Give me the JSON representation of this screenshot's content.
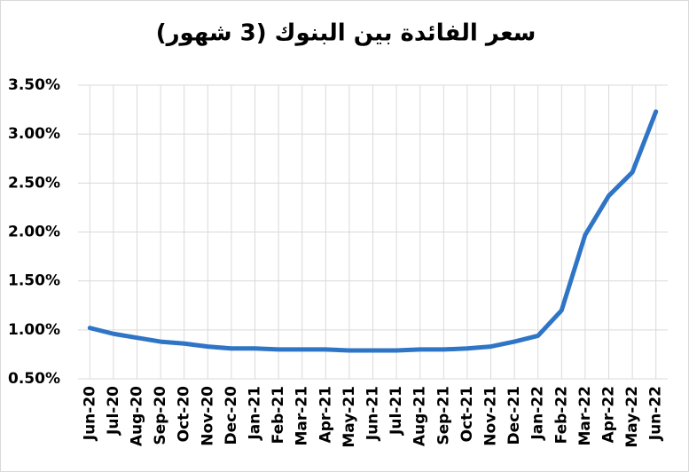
{
  "chart_data": {
    "type": "line",
    "title": "سعر الفائدة بين البنوك (3 شهور)",
    "categories": [
      "Jun-20",
      "Jul-20",
      "Aug-20",
      "Sep-20",
      "Oct-20",
      "Nov-20",
      "Dec-20",
      "Jan-21",
      "Feb-21",
      "Mar-21",
      "Apr-21",
      "May-21",
      "Jun-21",
      "Jul-21",
      "Aug-21",
      "Sep-21",
      "Oct-21",
      "Nov-21",
      "Dec-21",
      "Jan-22",
      "Feb-22",
      "Mar-22",
      "Apr-22",
      "May-22",
      "Jun-22"
    ],
    "values": [
      1.02,
      0.96,
      0.92,
      0.88,
      0.86,
      0.83,
      0.81,
      0.81,
      0.8,
      0.8,
      0.8,
      0.79,
      0.79,
      0.79,
      0.8,
      0.8,
      0.81,
      0.83,
      0.88,
      0.94,
      1.2,
      1.97,
      2.37,
      2.61,
      3.23
    ],
    "color": "#2e75c6",
    "ylim": [
      0.5,
      3.5
    ],
    "yticks": [
      {
        "value": 0.5,
        "label": "0.50%"
      },
      {
        "value": 1.0,
        "label": "1.00%"
      },
      {
        "value": 1.5,
        "label": "1.50%"
      },
      {
        "value": 2.0,
        "label": "2.00%"
      },
      {
        "value": 2.5,
        "label": "2.50%"
      },
      {
        "value": 3.0,
        "label": "3.00%"
      },
      {
        "value": 3.5,
        "label": "3.50%"
      }
    ],
    "grid": true
  }
}
